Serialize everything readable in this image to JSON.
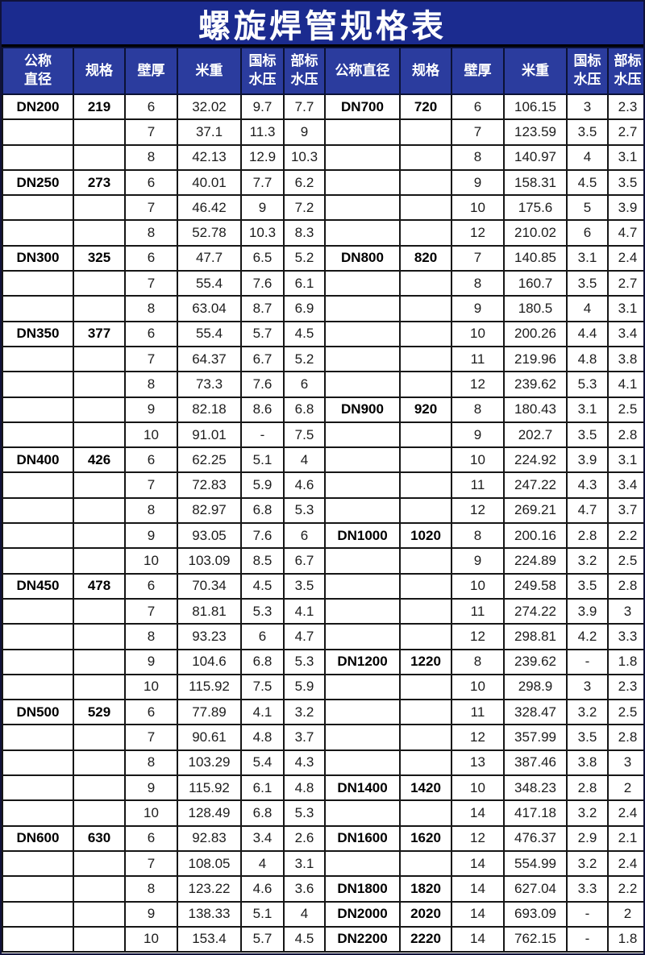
{
  "title": "螺旋焊管规格表",
  "colors": {
    "title_bg": "#1b2b8f",
    "header_bg": "#2b3c9e",
    "header_border": "#0b1235",
    "grid_border": "#161616",
    "header_text": "#ffffff",
    "body_text": "#1c1c1c"
  },
  "header": {
    "left": [
      "公称\n直径",
      "规格",
      "壁厚",
      "米重",
      "国标\n水压",
      "部标\n水压"
    ],
    "right": [
      "公称直径",
      "规格",
      "壁厚",
      "米重",
      "国标\n水压",
      "部标\n水压"
    ]
  },
  "rows": [
    [
      "DN200",
      "219",
      "6",
      "32.02",
      "9.7",
      "7.7",
      "DN700",
      "720",
      "6",
      "106.15",
      "3",
      "2.3"
    ],
    [
      "",
      "",
      "7",
      "37.1",
      "11.3",
      "9",
      "",
      "",
      "7",
      "123.59",
      "3.5",
      "2.7"
    ],
    [
      "",
      "",
      "8",
      "42.13",
      "12.9",
      "10.3",
      "",
      "",
      "8",
      "140.97",
      "4",
      "3.1"
    ],
    [
      "DN250",
      "273",
      "6",
      "40.01",
      "7.7",
      "6.2",
      "",
      "",
      "9",
      "158.31",
      "4.5",
      "3.5"
    ],
    [
      "",
      "",
      "7",
      "46.42",
      "9",
      "7.2",
      "",
      "",
      "10",
      "175.6",
      "5",
      "3.9"
    ],
    [
      "",
      "",
      "8",
      "52.78",
      "10.3",
      "8.3",
      "",
      "",
      "12",
      "210.02",
      "6",
      "4.7"
    ],
    [
      "DN300",
      "325",
      "6",
      "47.7",
      "6.5",
      "5.2",
      "DN800",
      "820",
      "7",
      "140.85",
      "3.1",
      "2.4"
    ],
    [
      "",
      "",
      "7",
      "55.4",
      "7.6",
      "6.1",
      "",
      "",
      "8",
      "160.7",
      "3.5",
      "2.7"
    ],
    [
      "",
      "",
      "8",
      "63.04",
      "8.7",
      "6.9",
      "",
      "",
      "9",
      "180.5",
      "4",
      "3.1"
    ],
    [
      "DN350",
      "377",
      "6",
      "55.4",
      "5.7",
      "4.5",
      "",
      "",
      "10",
      "200.26",
      "4.4",
      "3.4"
    ],
    [
      "",
      "",
      "7",
      "64.37",
      "6.7",
      "5.2",
      "",
      "",
      "11",
      "219.96",
      "4.8",
      "3.8"
    ],
    [
      "",
      "",
      "8",
      "73.3",
      "7.6",
      "6",
      "",
      "",
      "12",
      "239.62",
      "5.3",
      "4.1"
    ],
    [
      "",
      "",
      "9",
      "82.18",
      "8.6",
      "6.8",
      "DN900",
      "920",
      "8",
      "180.43",
      "3.1",
      "2.5"
    ],
    [
      "",
      "",
      "10",
      "91.01",
      "-",
      "7.5",
      "",
      "",
      "9",
      "202.7",
      "3.5",
      "2.8"
    ],
    [
      "DN400",
      "426",
      "6",
      "62.25",
      "5.1",
      "4",
      "",
      "",
      "10",
      "224.92",
      "3.9",
      "3.1"
    ],
    [
      "",
      "",
      "7",
      "72.83",
      "5.9",
      "4.6",
      "",
      "",
      "11",
      "247.22",
      "4.3",
      "3.4"
    ],
    [
      "",
      "",
      "8",
      "82.97",
      "6.8",
      "5.3",
      "",
      "",
      "12",
      "269.21",
      "4.7",
      "3.7"
    ],
    [
      "",
      "",
      "9",
      "93.05",
      "7.6",
      "6",
      "DN1000",
      "1020",
      "8",
      "200.16",
      "2.8",
      "2.2"
    ],
    [
      "",
      "",
      "10",
      "103.09",
      "8.5",
      "6.7",
      "",
      "",
      "9",
      "224.89",
      "3.2",
      "2.5"
    ],
    [
      "DN450",
      "478",
      "6",
      "70.34",
      "4.5",
      "3.5",
      "",
      "",
      "10",
      "249.58",
      "3.5",
      "2.8"
    ],
    [
      "",
      "",
      "7",
      "81.81",
      "5.3",
      "4.1",
      "",
      "",
      "11",
      "274.22",
      "3.9",
      "3"
    ],
    [
      "",
      "",
      "8",
      "93.23",
      "6",
      "4.7",
      "",
      "",
      "12",
      "298.81",
      "4.2",
      "3.3"
    ],
    [
      "",
      "",
      "9",
      "104.6",
      "6.8",
      "5.3",
      "DN1200",
      "1220",
      "8",
      "239.62",
      "-",
      "1.8"
    ],
    [
      "",
      "",
      "10",
      "115.92",
      "7.5",
      "5.9",
      "",
      "",
      "10",
      "298.9",
      "3",
      "2.3"
    ],
    [
      "DN500",
      "529",
      "6",
      "77.89",
      "4.1",
      "3.2",
      "",
      "",
      "11",
      "328.47",
      "3.2",
      "2.5"
    ],
    [
      "",
      "",
      "7",
      "90.61",
      "4.8",
      "3.7",
      "",
      "",
      "12",
      "357.99",
      "3.5",
      "2.8"
    ],
    [
      "",
      "",
      "8",
      "103.29",
      "5.4",
      "4.3",
      "",
      "",
      "13",
      "387.46",
      "3.8",
      "3"
    ],
    [
      "",
      "",
      "9",
      "115.92",
      "6.1",
      "4.8",
      "DN1400",
      "1420",
      "10",
      "348.23",
      "2.8",
      "2"
    ],
    [
      "",
      "",
      "10",
      "128.49",
      "6.8",
      "5.3",
      "",
      "",
      "14",
      "417.18",
      "3.2",
      "2.4"
    ],
    [
      "DN600",
      "630",
      "6",
      "92.83",
      "3.4",
      "2.6",
      "DN1600",
      "1620",
      "12",
      "476.37",
      "2.9",
      "2.1"
    ],
    [
      "",
      "",
      "7",
      "108.05",
      "4",
      "3.1",
      "",
      "",
      "14",
      "554.99",
      "3.2",
      "2.4"
    ],
    [
      "",
      "",
      "8",
      "123.22",
      "4.6",
      "3.6",
      "DN1800",
      "1820",
      "14",
      "627.04",
      "3.3",
      "2.2"
    ],
    [
      "",
      "",
      "9",
      "138.33",
      "5.1",
      "4",
      "DN2000",
      "2020",
      "14",
      "693.09",
      "-",
      "2"
    ],
    [
      "",
      "",
      "10",
      "153.4",
      "5.7",
      "4.5",
      "DN2200",
      "2220",
      "14",
      "762.15",
      "-",
      "1.8"
    ]
  ]
}
